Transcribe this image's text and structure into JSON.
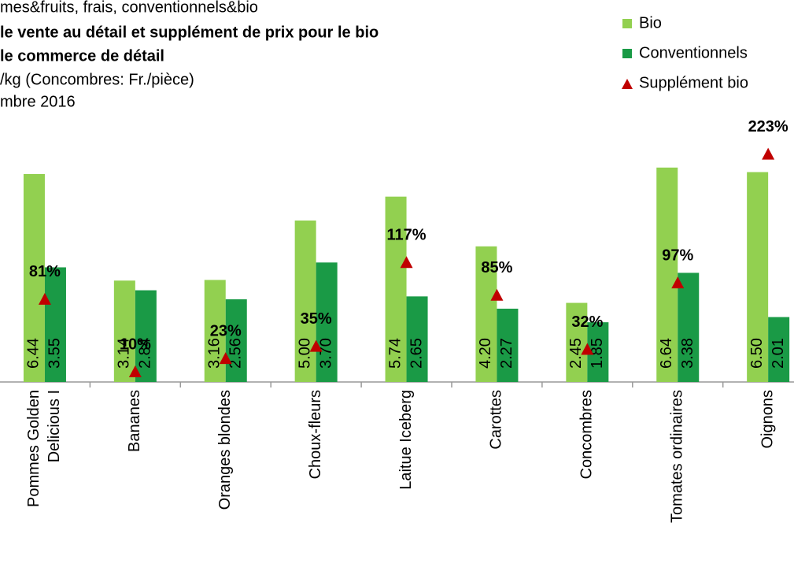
{
  "chart_data": {
    "type": "bar",
    "title_lines": [
      "mes&fruits, frais, conventionnels&bio",
      "le vente au détail et supplément de prix pour le bio",
      "le commerce de détail",
      "/kg (Concombres: Fr./pièce)",
      "mbre 2016"
    ],
    "categories": [
      "Pommes Golden Delicious I",
      "Bananes",
      "Oranges blondes",
      "Choux-fleurs",
      "Laitue Iceberg",
      "Carottes",
      "Concombres",
      "Tomates ordinaires",
      "Oignons"
    ],
    "series": [
      {
        "name": "Bio",
        "color": "#92d050",
        "values": [
          6.44,
          3.14,
          3.16,
          5.0,
          5.74,
          4.2,
          2.45,
          6.64,
          6.5
        ],
        "value_labels": [
          "6.44",
          "3.14",
          "3.16",
          "5.00",
          "5.74",
          "4.20",
          "2.45",
          "6.64",
          "6.50"
        ]
      },
      {
        "name": "Conventionnels",
        "color": "#1a9a46",
        "values": [
          3.55,
          2.84,
          2.56,
          3.7,
          2.65,
          2.27,
          1.85,
          3.38,
          2.01
        ],
        "value_labels": [
          "3.55",
          "2.84",
          "2.56",
          "3.70",
          "2.65",
          "2.27",
          "1.85",
          "3.38",
          "2.01"
        ]
      },
      {
        "name": "Supplément bio",
        "color": "#c00000",
        "axis": "y2",
        "marker": "triangle",
        "values": [
          81,
          10,
          23,
          35,
          117,
          85,
          32,
          97,
          223
        ],
        "value_labels": [
          "81%",
          "10%",
          "23%",
          "35%",
          "117%",
          "85%",
          "32%",
          "97%",
          "223%"
        ]
      }
    ],
    "ylim": [
      0,
      7.5
    ],
    "y2lim": [
      0,
      237
    ],
    "legend": "top-right"
  }
}
